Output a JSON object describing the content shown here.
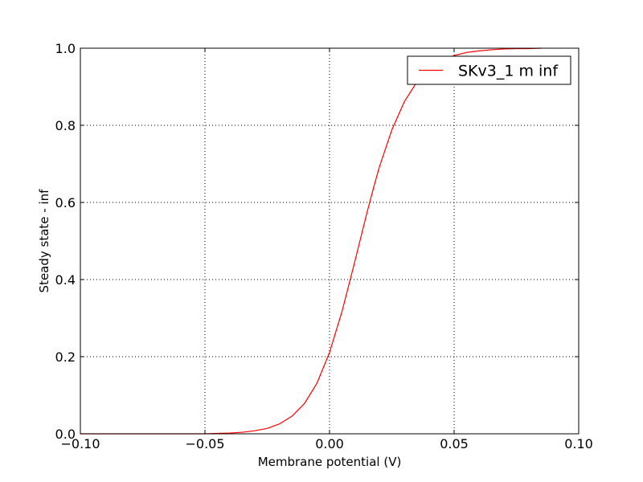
{
  "chart_data": {
    "type": "line",
    "xlabel": "Membrane potential (V)",
    "ylabel": "Steady state - inf",
    "xlim": [
      -0.1,
      0.1
    ],
    "ylim": [
      0.0,
      1.0
    ],
    "grid": true,
    "legend_position": "top-right",
    "xticks": [
      -0.1,
      -0.05,
      0.0,
      0.05,
      0.1
    ],
    "xtick_labels": [
      "−0.10",
      "−0.05",
      "0.00",
      "0.05",
      "0.10"
    ],
    "yticks": [
      0.0,
      0.2,
      0.4,
      0.6,
      0.8,
      1.0
    ],
    "ytick_labels": [
      "0.0",
      "0.2",
      "0.4",
      "0.6",
      "0.8",
      "1.0"
    ],
    "series": [
      {
        "name": "SKv3_1 m inf",
        "color": "#ff0000",
        "x": [
          -0.1,
          -0.09,
          -0.08,
          -0.07,
          -0.06,
          -0.05,
          -0.045,
          -0.04,
          -0.035,
          -0.03,
          -0.025,
          -0.02,
          -0.015,
          -0.01,
          -0.005,
          0.0,
          0.005,
          0.01,
          0.015,
          0.018,
          0.02,
          0.025,
          0.03,
          0.035,
          0.04,
          0.045,
          0.05,
          0.055,
          0.06,
          0.065,
          0.07,
          0.075,
          0.08,
          0.085
        ],
        "y": [
          0.0,
          0.0,
          0.0,
          0.0,
          0.0,
          0.0,
          0.001,
          0.002,
          0.004,
          0.008,
          0.014,
          0.026,
          0.046,
          0.079,
          0.132,
          0.211,
          0.317,
          0.443,
          0.573,
          0.646,
          0.692,
          0.788,
          0.861,
          0.912,
          0.946,
          0.968,
          0.981,
          0.989,
          0.993,
          0.996,
          0.998,
          0.999,
          0.999,
          1.0
        ]
      }
    ]
  }
}
